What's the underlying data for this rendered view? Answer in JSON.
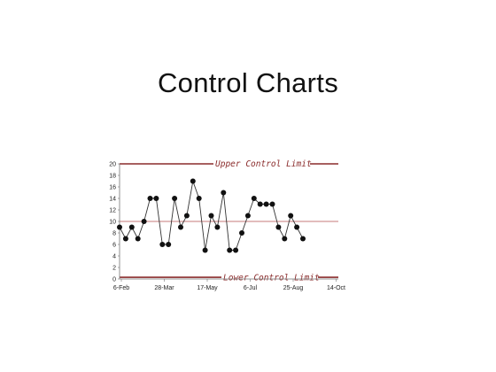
{
  "slide": {
    "title": "Control Charts"
  },
  "chart_data": {
    "type": "line",
    "title": "",
    "xlabel": "",
    "ylabel": "",
    "ylim": [
      0,
      20
    ],
    "yticks": [
      0,
      2,
      4,
      6,
      8,
      10,
      12,
      14,
      16,
      18,
      20
    ],
    "xtick_labels": [
      "6-Feb",
      "28-Mar",
      "17-May",
      "6-Jul",
      "25-Aug",
      "14-Oct"
    ],
    "grid": false,
    "colors": {
      "line": "#333333",
      "point": "#111111",
      "limit": "#8a2b2b",
      "center": "#c77a7a",
      "axis": "#777777"
    },
    "limits": {
      "upper": {
        "label": "Upper Control Limit",
        "value": 20
      },
      "center": {
        "value": 10
      },
      "lower": {
        "label": "Lower Control Limit",
        "value": 0.3
      }
    },
    "series": [
      {
        "values": [
          9,
          7,
          9,
          7,
          10,
          14,
          14,
          6,
          6,
          14,
          9,
          11,
          17,
          14,
          5,
          11,
          9,
          15,
          5,
          5,
          8,
          11,
          14,
          13,
          13,
          13,
          9,
          7,
          11,
          9,
          7
        ]
      }
    ]
  }
}
